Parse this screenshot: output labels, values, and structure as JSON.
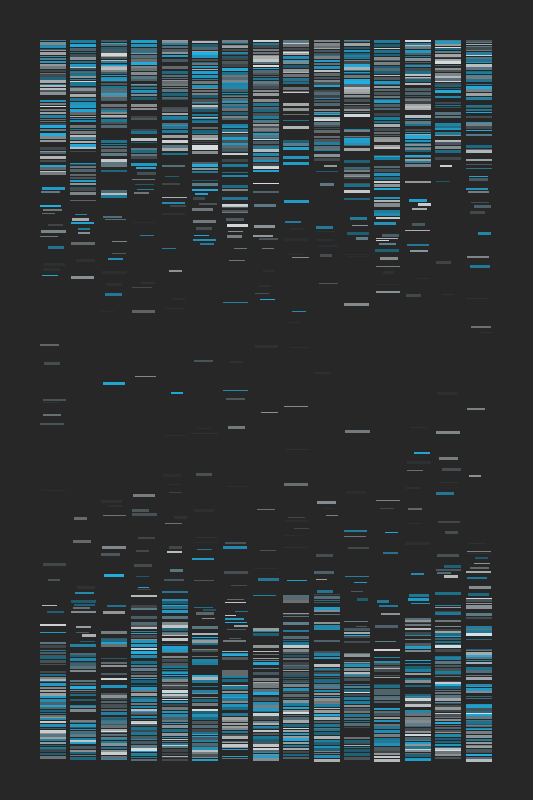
{
  "artwork": {
    "background_color": "#262626",
    "column_count": 15,
    "palette": {
      "dark": "#2f3335",
      "slate": "#4f5a5e",
      "grey": "#8d979b",
      "light": "#d9dee0",
      "cyan": "#22aee0",
      "teal": "#1b7f9f",
      "steel": "#5f7f8c"
    }
  }
}
